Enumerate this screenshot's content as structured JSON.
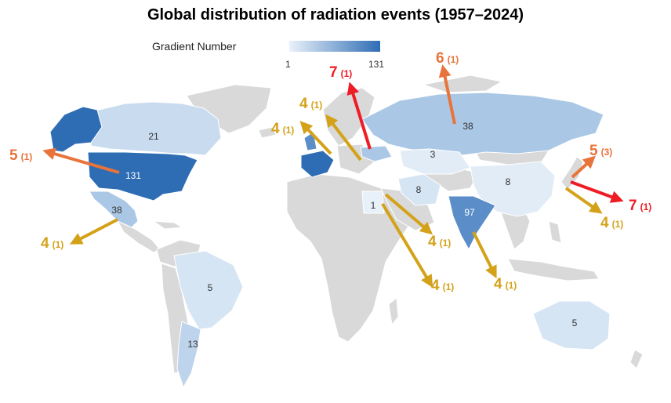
{
  "title": "Global distribution of radiation events (1957–2024)",
  "legend": {
    "title": "Gradient Number",
    "min": "1",
    "max": "131",
    "color_low": "#eaf1fa",
    "color_high": "#2e6db4"
  },
  "colors": {
    "land": "#d9d9d9",
    "red": "#ee1c25",
    "orange": "#e8743b",
    "gold": "#d4a21a"
  },
  "regions": [
    {
      "name": "United States",
      "count": "131",
      "value": 131
    },
    {
      "name": "India",
      "count": "97",
      "value": 97
    },
    {
      "name": "Mexico",
      "count": "38",
      "value": 38
    },
    {
      "name": "Russia",
      "count": "38",
      "value": 38
    },
    {
      "name": "Canada",
      "count": "21",
      "value": 21
    },
    {
      "name": "Argentina",
      "count": "13",
      "value": 13
    },
    {
      "name": "China",
      "count": "8",
      "value": 8
    },
    {
      "name": "Iran",
      "count": "8",
      "value": 8
    },
    {
      "name": "Brazil",
      "count": "5",
      "value": 5
    },
    {
      "name": "Australia",
      "count": "5",
      "value": 5
    },
    {
      "name": "Kazakhstan",
      "count": "3",
      "value": 3
    },
    {
      "name": "Egypt",
      "count": "1",
      "value": 1
    }
  ],
  "callouts": [
    {
      "id": "usa-west",
      "number": "5",
      "sub": "(1)",
      "color": "orange"
    },
    {
      "id": "mexico-sw",
      "number": "4",
      "sub": "(1)",
      "color": "gold"
    },
    {
      "id": "europe-w",
      "number": "4",
      "sub": "(1)",
      "color": "gold"
    },
    {
      "id": "europe-n",
      "number": "4",
      "sub": "(1)",
      "color": "gold"
    },
    {
      "id": "ukraine",
      "number": "7",
      "sub": "(1)",
      "color": "red"
    },
    {
      "id": "russia-n",
      "number": "6",
      "sub": "(1)",
      "color": "orange"
    },
    {
      "id": "japan-ne",
      "number": "5",
      "sub": "(3)",
      "color": "orange"
    },
    {
      "id": "japan-e",
      "number": "7",
      "sub": "(1)",
      "color": "red"
    },
    {
      "id": "japan-se",
      "number": "4",
      "sub": "(1)",
      "color": "gold"
    },
    {
      "id": "mideast-1",
      "number": "4",
      "sub": "(1)",
      "color": "gold"
    },
    {
      "id": "mideast-2",
      "number": "4",
      "sub": "(1)",
      "color": "gold"
    },
    {
      "id": "india-s",
      "number": "4",
      "sub": "(1)",
      "color": "gold"
    }
  ]
}
